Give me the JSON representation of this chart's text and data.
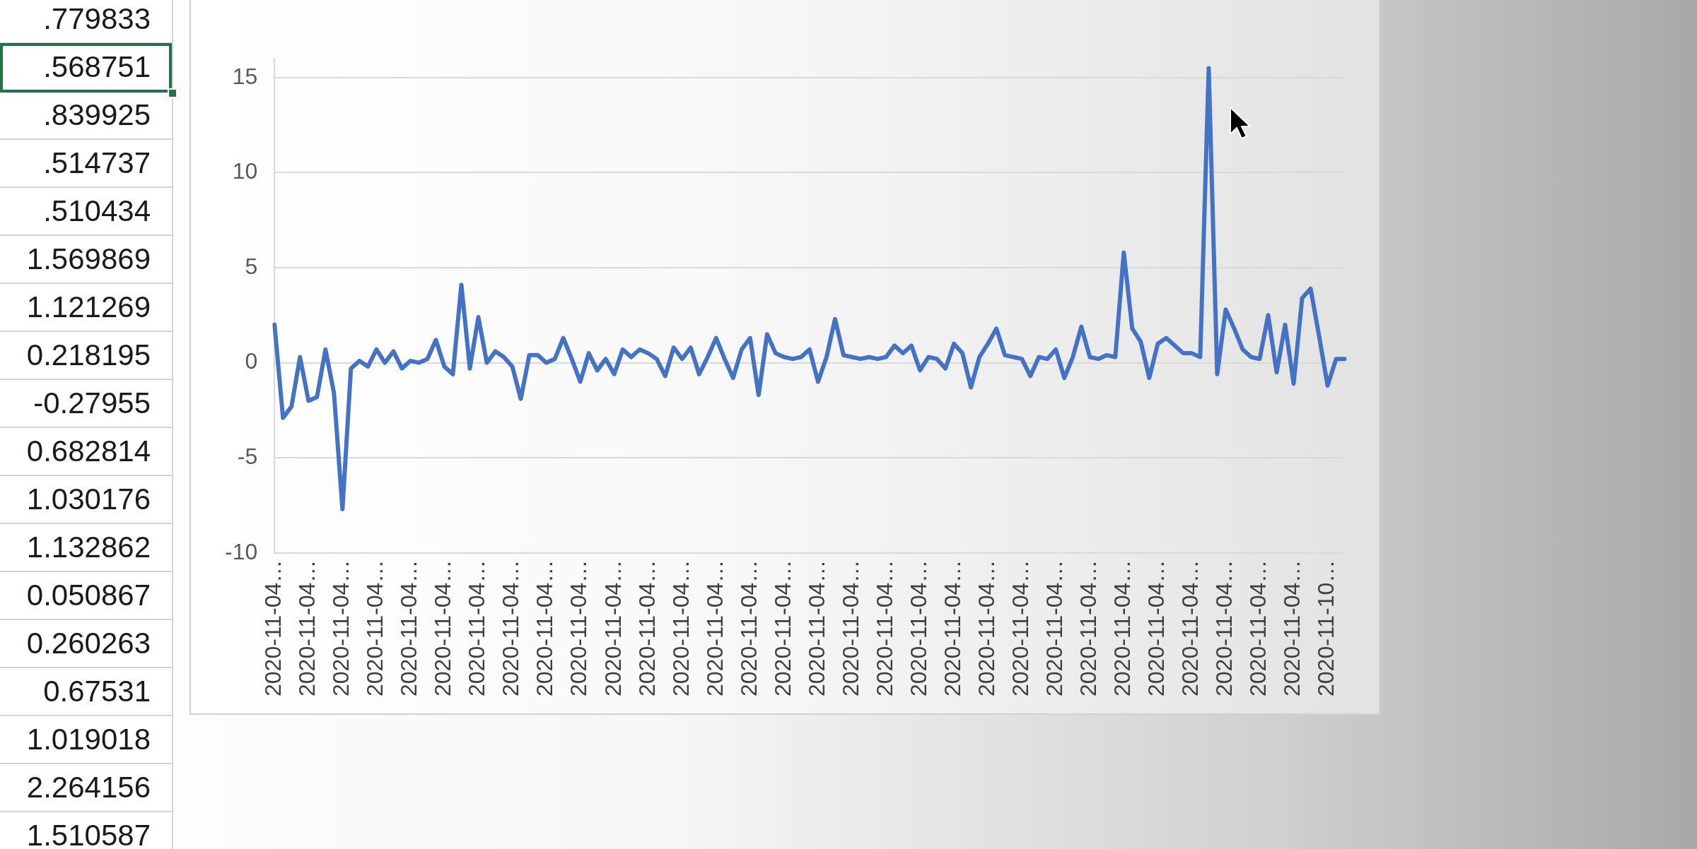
{
  "chart_data": {
    "type": "line",
    "categories": [
      "2020-11-04…",
      null,
      null,
      null,
      "2020-11-04…",
      null,
      null,
      null,
      "2020-11-04…",
      null,
      null,
      null,
      "2020-11-04…",
      null,
      null,
      null,
      "2020-11-04…",
      null,
      null,
      null,
      "2020-11-04…",
      null,
      null,
      null,
      "2020-11-04…",
      null,
      null,
      null,
      "2020-11-04…",
      null,
      null,
      null,
      "2020-11-04…",
      null,
      null,
      null,
      "2020-11-04…",
      null,
      null,
      null,
      "2020-11-04…",
      null,
      null,
      null,
      "2020-11-04…",
      null,
      null,
      null,
      "2020-11-04…",
      null,
      null,
      null,
      "2020-11-04…",
      null,
      null,
      null,
      "2020-11-04…",
      null,
      null,
      null,
      "2020-11-04…",
      null,
      null,
      null,
      "2020-11-04…",
      null,
      null,
      null,
      "2020-11-04…",
      null,
      null,
      null,
      "2020-11-04…",
      null,
      null,
      null,
      "2020-11-04…",
      null,
      null,
      null,
      "2020-11-04…",
      null,
      null,
      null,
      "2020-11-04…",
      null,
      null,
      null,
      "2020-11-04…",
      null,
      null,
      null,
      "2020-11-04…",
      null,
      null,
      null,
      "2020-11-04…",
      null,
      null,
      null,
      "2020-11-04…",
      null,
      null,
      null,
      "2020-11-04…",
      null,
      null,
      null,
      "2020-11-04…",
      null,
      null,
      null,
      "2020-11-04…",
      null,
      null,
      null,
      "2020-11-04…",
      null,
      null,
      null,
      "2020-11-04…",
      null,
      null,
      null,
      "2020-11-10…",
      null,
      null
    ],
    "values": [
      2.0,
      -2.9,
      -2.3,
      0.3,
      -2.0,
      -1.8,
      0.7,
      -1.6,
      -7.7,
      -0.3,
      0.1,
      -0.2,
      0.7,
      0,
      0.6,
      -0.3,
      0.1,
      0,
      0.2,
      1.2,
      -0.2,
      -0.6,
      4.1,
      -0.3,
      2.4,
      0,
      0.6,
      0.3,
      -0.2,
      -1.9,
      0.4,
      0.4,
      0,
      0.2,
      1.3,
      0.2,
      -1.0,
      0.5,
      -0.4,
      0.2,
      -0.6,
      0.7,
      0.3,
      0.7,
      0.5,
      0.2,
      -0.7,
      0.8,
      0.2,
      0.8,
      -0.6,
      0.3,
      1.3,
      0.2,
      -0.8,
      0.7,
      1.3,
      -1.7,
      1.5,
      0.5,
      0.3,
      0.2,
      0.3,
      0.7,
      -1.0,
      0.3,
      2.3,
      0.4,
      0.3,
      0.2,
      0.3,
      0.2,
      0.3,
      0.9,
      0.5,
      0.9,
      -0.4,
      0.3,
      0.2,
      -0.3,
      1.0,
      0.5,
      -1.3,
      0.3,
      1.0,
      1.8,
      0.4,
      0.3,
      0.2,
      -0.7,
      0.3,
      0.2,
      0.7,
      -0.8,
      0.3,
      1.9,
      0.3,
      0.2,
      0.4,
      0.3,
      5.8,
      1.8,
      1.1,
      -0.8,
      1.0,
      1.3,
      0.9,
      0.5,
      0.5,
      0.3,
      15.5,
      -0.6,
      2.8,
      1.8,
      0.7,
      0.3,
      0.2,
      2.5,
      -0.5,
      2.0,
      -1.1,
      3.4,
      3.9,
      1.4,
      -1.2,
      0.2,
      0.2
    ],
    "color": "#4472c4",
    "ylim": [
      -10,
      16
    ],
    "yticks": [
      -10,
      -5,
      0,
      5,
      10,
      15
    ],
    "grid": "y",
    "legend": false,
    "marker": "none",
    "annotations": [
      ".779833",
      ".568751",
      ".839925",
      ".514737",
      ".510434",
      "1.569869",
      "1.121269",
      "0.218195",
      "-0.27955",
      "0.682814",
      "1.030176",
      "1.132862",
      "0.050867",
      "0.260263",
      "0.67531",
      "1.019018",
      "2.264156",
      "1.510587"
    ]
  }
}
